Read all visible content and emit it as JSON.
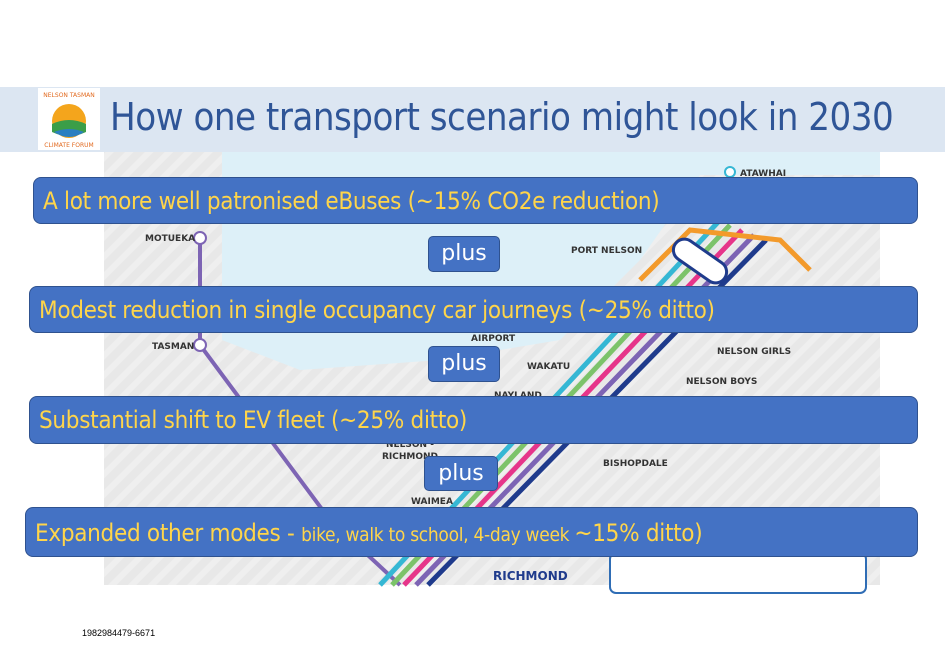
{
  "header": {
    "logo_top": "NELSON TASMAN",
    "logo_bottom": "CLIMATE FORUM",
    "title": "How one transport scenario might look in 2030"
  },
  "statements": [
    "A lot more well patronised eBuses (~15% CO2e reduction)",
    "Modest reduction in single occupancy car journeys (~25% ditto)",
    "Substantial shift to EV fleet (~25% ditto)"
  ],
  "last_statement": [
    "Expanded other modes - ",
    "bike, walk to school, 4-day week ",
    "~15% ditto)"
  ],
  "connectors": [
    "plus",
    "plus",
    "plus"
  ],
  "map_labels": [
    "ATAWHAI",
    "MOTUEKA",
    "PORT NELSON",
    "AIRPORT",
    "TASMAN",
    "WAKATU",
    "NELSON GIRLS",
    "NELSON BOYS",
    "NAYLAND",
    "NELSON -",
    "RICHMOND",
    "BISHOPDALE",
    "WAIMEA",
    "RICHMOND"
  ],
  "footer": "1982984479-6671"
}
